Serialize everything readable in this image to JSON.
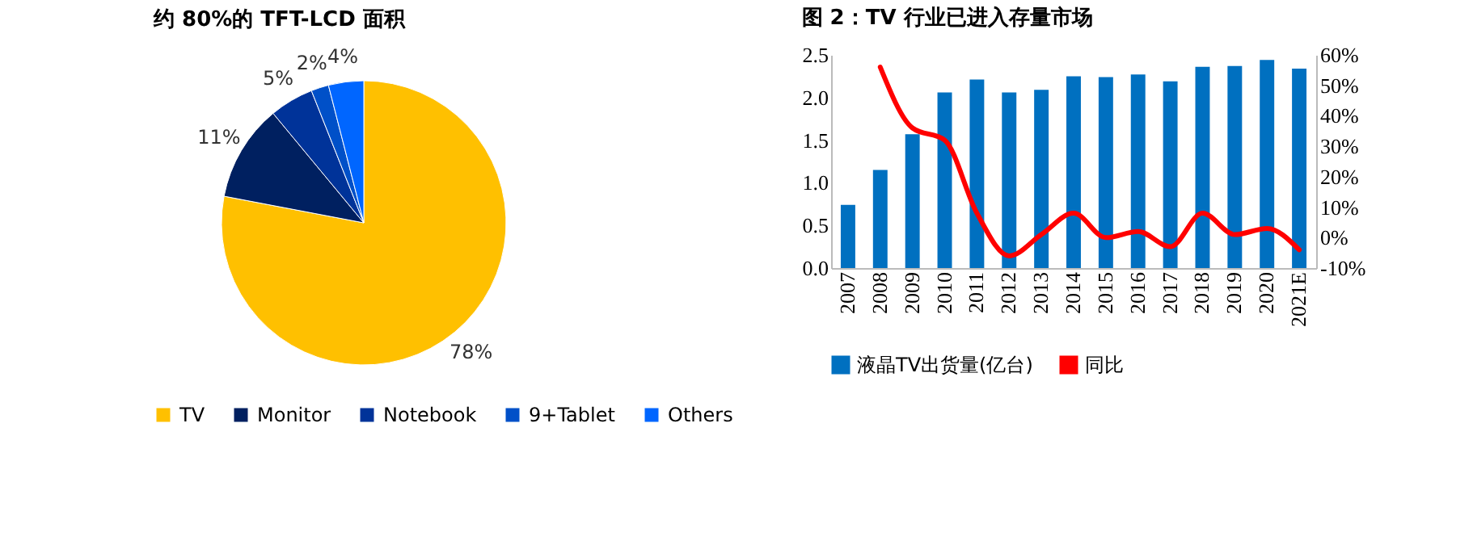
{
  "chart_data": [
    {
      "type": "pie",
      "title": "约 80%的 TFT-LCD 面积",
      "categories": [
        "TV",
        "Monitor",
        "Notebook",
        "9+Tablet",
        "Others"
      ],
      "values": [
        78,
        11,
        5,
        2,
        4
      ],
      "colors": [
        "#ffc000",
        "#002060",
        "#003399",
        "#0050c8",
        "#0066ff"
      ],
      "value_labels": [
        "78%",
        "11%",
        "5%",
        "2%",
        "4%"
      ],
      "legend": "bottom"
    },
    {
      "type": "bar",
      "title": "图 2：TV 行业已进入存量市场",
      "categories": [
        "2007",
        "2008",
        "2009",
        "2010",
        "2011",
        "2012",
        "2013",
        "2014",
        "2015",
        "2016",
        "2017",
        "2018",
        "2019",
        "2020",
        "2021E"
      ],
      "series": [
        {
          "name": "液晶TV出货量(亿台)",
          "type": "bar",
          "color": "#0070c0",
          "values": [
            0.74,
            1.15,
            1.57,
            2.06,
            2.21,
            2.06,
            2.09,
            2.25,
            2.24,
            2.27,
            2.19,
            2.36,
            2.37,
            2.44,
            2.34
          ]
        },
        {
          "name": "同比",
          "type": "line",
          "axis": "y2",
          "color": "#ff0000",
          "values": [
            null,
            56,
            36,
            32,
            8,
            -6,
            1,
            8,
            0,
            2,
            -3,
            8,
            1,
            3,
            -4
          ]
        }
      ],
      "ylim": [
        0,
        2.5
      ],
      "yticks": [
        {
          "value": 0,
          "label": "0.0"
        },
        0.5,
        {
          "value": 1,
          "label": "1.0"
        },
        1.5,
        {
          "value": 2,
          "label": "2.0"
        },
        2.5
      ],
      "y2lim": [
        -10,
        60
      ],
      "y2ticks": [
        {
          "value": -10,
          "label": "-10%"
        },
        {
          "value": 0,
          "label": "0%"
        },
        {
          "value": 10,
          "label": "10%"
        },
        {
          "value": 20,
          "label": "20%"
        },
        {
          "value": 30,
          "label": "30%"
        },
        {
          "value": 40,
          "label": "40%"
        },
        {
          "value": 50,
          "label": "50%"
        },
        {
          "value": 60,
          "label": "60%"
        }
      ],
      "legend": "bottom",
      "grid": false
    }
  ]
}
